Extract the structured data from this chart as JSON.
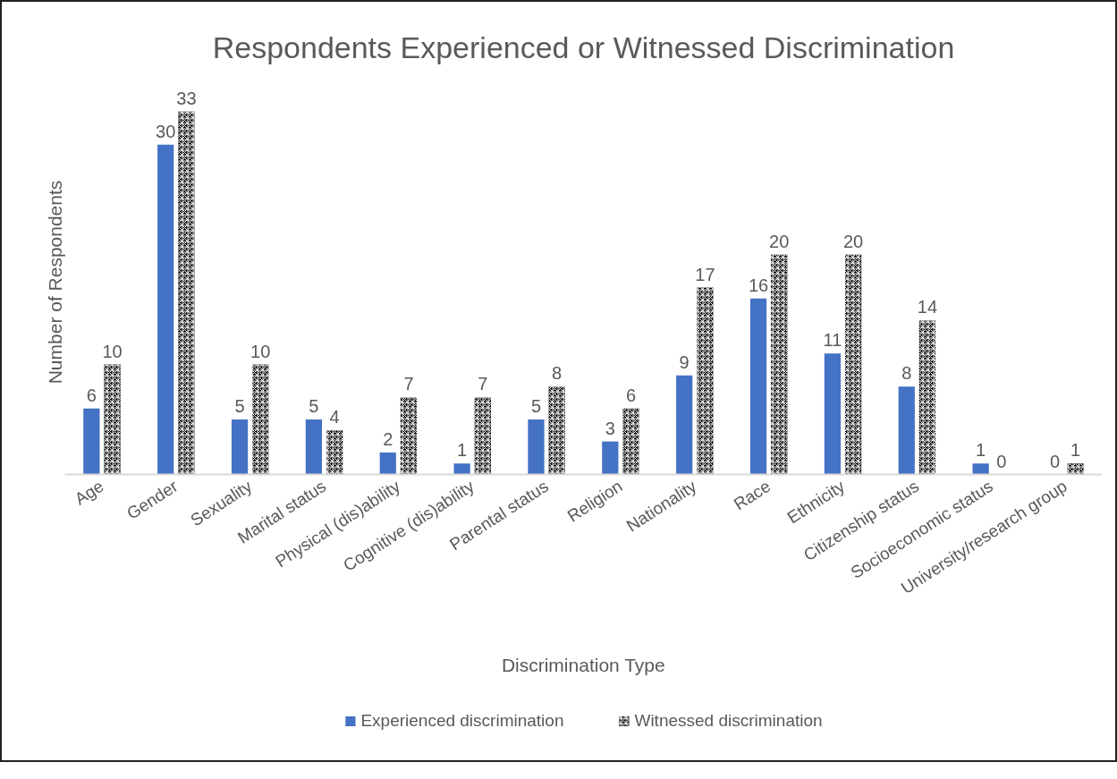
{
  "chart_data": {
    "type": "bar",
    "title": "Respondents Experienced or Witnessed Discrimination",
    "xlabel": "Discrimination Type",
    "ylabel": "Number of Respondents",
    "categories": [
      "Age",
      "Gender",
      "Sexuality",
      "Marital status",
      "Physical (dis)ability",
      "Cognitive (dis)ability",
      "Parental status",
      "Religion",
      "Nationality",
      "Race",
      "Ethnicity",
      "Citizenship status",
      "Socioeconomic status",
      "University/research group"
    ],
    "series": [
      {
        "name": "Experienced discrimination",
        "color": "#4472c4",
        "values": [
          6,
          30,
          5,
          5,
          2,
          1,
          5,
          3,
          9,
          16,
          11,
          8,
          1,
          0
        ]
      },
      {
        "name": "Witnessed discrimination",
        "color": "#000000",
        "values": [
          10,
          33,
          10,
          4,
          7,
          7,
          8,
          6,
          17,
          20,
          20,
          14,
          0,
          1
        ]
      }
    ],
    "tick_labels": "x",
    "data_labels": true,
    "legend": "bottom"
  }
}
